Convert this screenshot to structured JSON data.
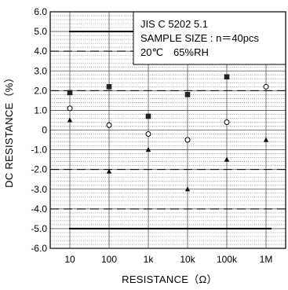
{
  "chart_data": {
    "type": "scatter",
    "xlabel": "RESISTANCE（Ω）",
    "ylabel": "DC RESISTANCE（%）",
    "categories": [
      "10",
      "100",
      "1k",
      "10k",
      "100k",
      "1M"
    ],
    "ylim": [
      -6.0,
      6.0
    ],
    "yticks": [
      "6.0",
      "5.0",
      "4.0",
      "3.0",
      "2.0",
      "1.0",
      "0",
      "-1.0",
      "-2.0",
      "-3.0",
      "-4.0",
      "-5.0",
      "-6.0"
    ],
    "y_minor_step": 0.2,
    "grid": true,
    "annotation_lines": [
      "JIS C 5202 5.1",
      "SAMPLE SIZE : n＝40pcs",
      "20℃　65%RH"
    ],
    "limit_lines": [
      {
        "style": "solid",
        "value": 5.0
      },
      {
        "style": "solid",
        "value": -5.0
      },
      {
        "style": "dashed",
        "value": 4.0
      },
      {
        "style": "dashed",
        "value": 2.0
      },
      {
        "style": "dashed",
        "value": -2.0
      },
      {
        "style": "dashed",
        "value": -4.0
      }
    ],
    "series": [
      {
        "marker": "square",
        "values": [
          1.9,
          2.2,
          0.7,
          1.8,
          2.7,
          null
        ]
      },
      {
        "marker": "circle-open",
        "values": [
          1.1,
          0.25,
          -0.2,
          -0.5,
          0.4,
          2.2
        ]
      },
      {
        "marker": "triangle",
        "values": [
          0.5,
          -2.1,
          -1.0,
          -3.0,
          -1.5,
          -0.5
        ]
      }
    ]
  }
}
